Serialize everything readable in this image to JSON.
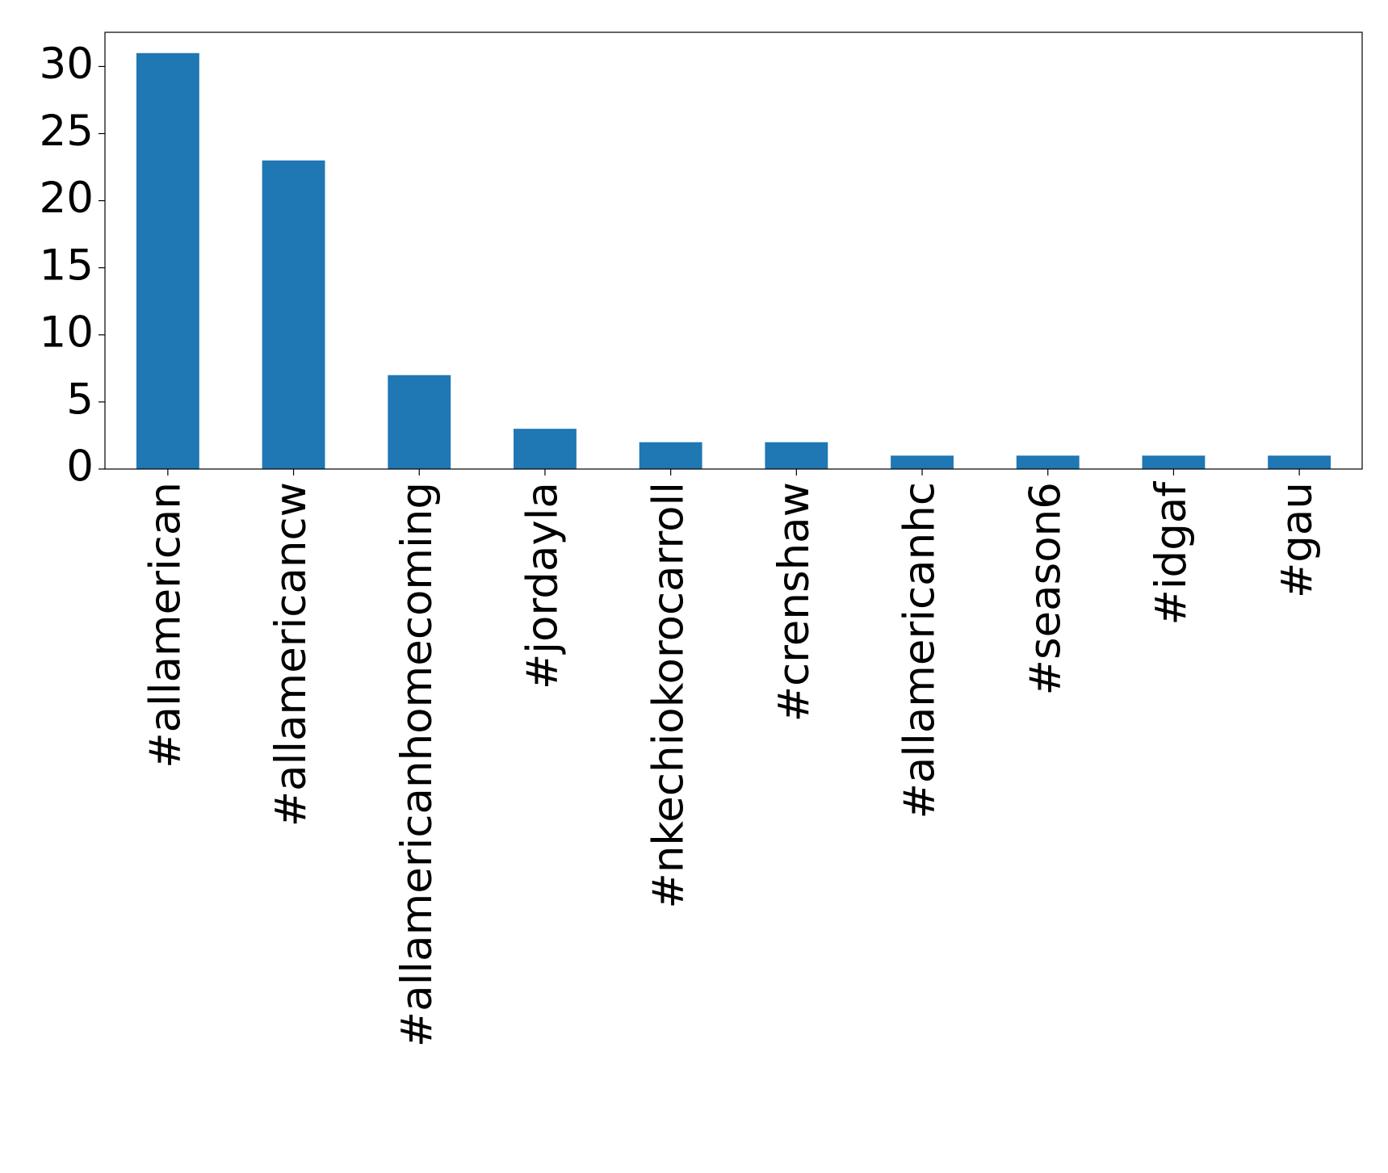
{
  "chart_data": {
    "type": "bar",
    "categories": [
      "#allamerican",
      "#allamericancw",
      "#allamericanhomecoming",
      "#jordayla",
      "#nkechiokorocarroll",
      "#crenshaw",
      "#allamericanhc",
      "#season6",
      "#idgaf",
      "#gau"
    ],
    "values": [
      31,
      23,
      7,
      3,
      2,
      2,
      1,
      1,
      1,
      1
    ],
    "color": "#1f77b4",
    "ylim": [
      0,
      32.55
    ],
    "yticks": [
      0,
      5,
      10,
      15,
      20,
      25,
      30
    ],
    "grid": false
  }
}
